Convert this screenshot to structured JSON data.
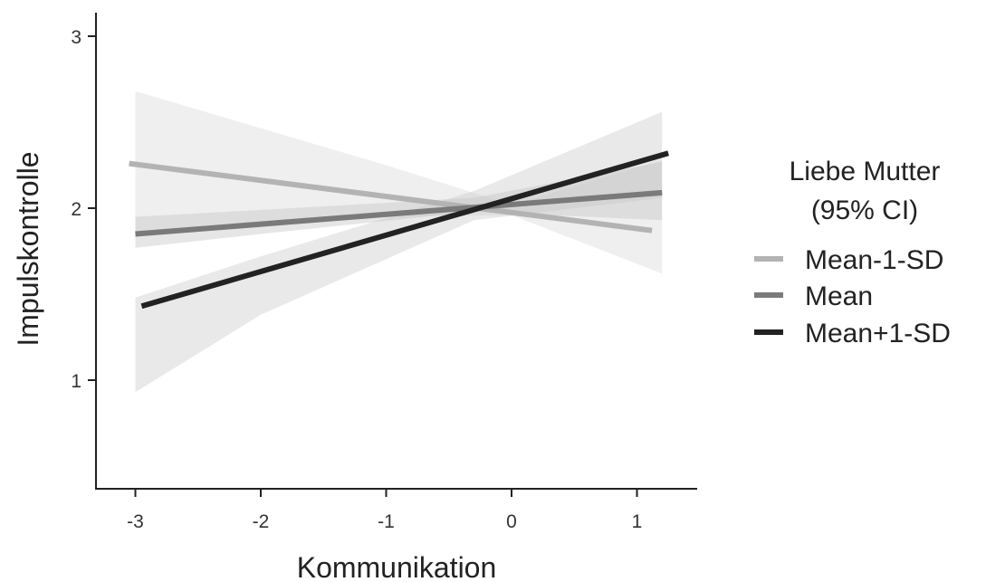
{
  "chart_data": {
    "type": "line",
    "title": "",
    "xlabel": "Kommunikation",
    "ylabel": "Impulskontrolle",
    "xlim": [
      -3.3,
      1.5
    ],
    "ylim": [
      0.4,
      3.1
    ],
    "xticks": [
      -3,
      -2,
      -1,
      0,
      1
    ],
    "yticks": [
      1,
      2,
      3
    ],
    "xtick_labels": [
      "-3",
      "-2",
      "-1",
      "0",
      "1"
    ],
    "ytick_labels": [
      "1",
      "2",
      "3"
    ],
    "grid": false,
    "legend": {
      "position": "right",
      "title_lines": [
        "Liebe Mutter",
        "(95% CI)"
      ]
    },
    "series": [
      {
        "name": "Mean-1-SD",
        "color": "#b3b3b3",
        "x": [
          -3.05,
          1.12
        ],
        "y": [
          2.26,
          1.87
        ],
        "ci_x": [
          -3.0,
          -1.0,
          0.0,
          1.2
        ],
        "ci_lower": [
          1.85,
          1.95,
          1.96,
          1.62
        ],
        "ci_upper": [
          2.68,
          2.25,
          2.02,
          2.28
        ]
      },
      {
        "name": "Mean",
        "color": "#7a7a7a",
        "x": [
          -3.0,
          1.2
        ],
        "y": [
          1.85,
          2.09
        ],
        "ci_x": [
          -3.0,
          -2.0,
          -0.3,
          1.2
        ],
        "ci_lower": [
          1.77,
          1.85,
          1.98,
          1.93
        ],
        "ci_upper": [
          1.95,
          1.99,
          2.06,
          2.27
        ]
      },
      {
        "name": "Mean+1-SD",
        "color": "#222222",
        "x": [
          -2.95,
          1.25
        ],
        "y": [
          1.43,
          2.32
        ],
        "ci_x": [
          -3.0,
          -2.0,
          -0.3,
          1.2
        ],
        "ci_lower": [
          0.93,
          1.38,
          1.93,
          2.06
        ],
        "ci_upper": [
          1.48,
          1.72,
          2.1,
          2.56
        ]
      }
    ]
  }
}
